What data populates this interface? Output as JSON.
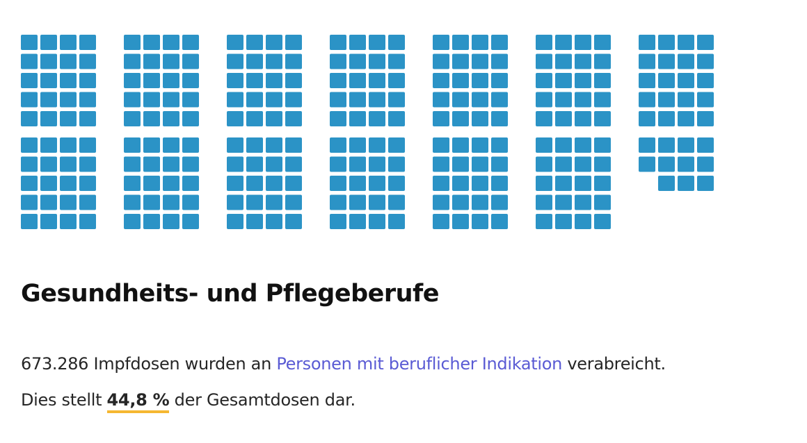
{
  "chart_data": {
    "type": "waffle",
    "blocks": [
      20,
      20,
      20,
      20,
      20,
      20,
      20,
      20,
      20,
      20,
      20,
      20,
      20,
      11
    ],
    "total_squares": 271,
    "color": "#2b93c6"
  },
  "caption": {
    "title": "Gesundheits- und Pflegeberufe",
    "doses": "673.286",
    "text_before_link": " Impfdosen wurden an ",
    "link_text": "Personen mit beruflicher Indikation",
    "text_after_link": " verabreicht.",
    "line2_prefix": "Dies stellt ",
    "percent": "44,8 %",
    "line2_suffix": " der Gesamtdosen dar."
  },
  "colors": {
    "link": "#5a5bd4",
    "underline_accent": "#f5b731",
    "text": "#262626"
  }
}
